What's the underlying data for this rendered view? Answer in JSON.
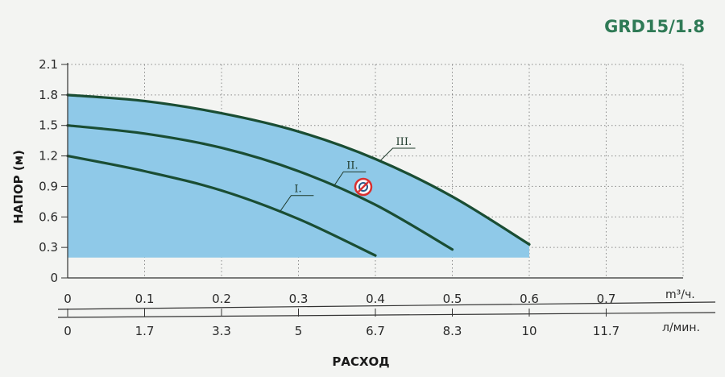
{
  "chart_data": {
    "type": "line",
    "title": "GRD15/1.8",
    "xlabel": "РАСХОД",
    "ylabel": "НАПОР (м)",
    "x_unit_primary": "m³/ч.",
    "x_unit_secondary": "л/мин.",
    "xlim": [
      0,
      0.8
    ],
    "ylim": [
      0,
      2.1
    ],
    "y_ticks": [
      "0",
      "0.3",
      "0.6",
      "0.9",
      "1.2",
      "1.5",
      "1.8",
      "2.1"
    ],
    "x_ticks_primary": [
      "0",
      "0.1",
      "0.2",
      "0.3",
      "0.4",
      "0.5",
      "0.6",
      "0.7"
    ],
    "x_ticks_secondary": [
      "0",
      "1.7",
      "3.3",
      "5",
      "6.7",
      "8.3",
      "10",
      "11.7"
    ],
    "grid": true,
    "fill_color": "#8fc9e8",
    "line_color": "#1a4d33",
    "title_color": "#2f7a56",
    "series": [
      {
        "name": "I.",
        "x": [
          0,
          0.1,
          0.2,
          0.3,
          0.4
        ],
        "y": [
          1.2,
          1.05,
          0.86,
          0.58,
          0.22
        ]
      },
      {
        "name": "II.",
        "x": [
          0,
          0.1,
          0.2,
          0.3,
          0.4,
          0.5
        ],
        "y": [
          1.5,
          1.42,
          1.28,
          1.05,
          0.72,
          0.28
        ]
      },
      {
        "name": "III.",
        "x": [
          0,
          0.1,
          0.2,
          0.3,
          0.4,
          0.5,
          0.6
        ],
        "y": [
          1.8,
          1.74,
          1.62,
          1.44,
          1.17,
          0.8,
          0.33
        ]
      }
    ]
  }
}
